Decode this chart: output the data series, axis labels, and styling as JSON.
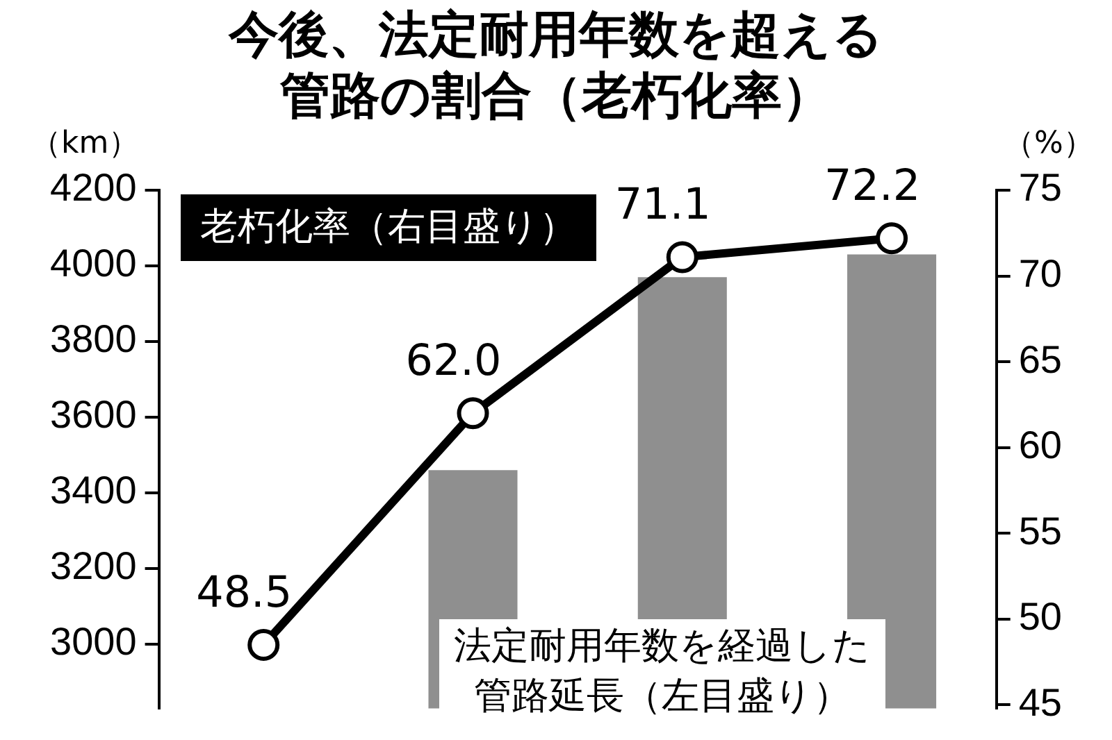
{
  "chart_data": {
    "type": "bar",
    "title": "今後、法定耐用年数を超える管路の割合（老朽化率）",
    "ylabel": "（km）",
    "y2label": "（%）",
    "categories": [
      null,
      null,
      null,
      null
    ],
    "series": [
      {
        "name": "法定耐用年数を経過した管路延長（左目盛り）",
        "color": "#8f8f8f",
        "values": [
          null,
          3460,
          3970,
          4030
        ]
      },
      {
        "type": "line",
        "axis": "y2",
        "name": "老朽化率（右目盛り）",
        "color": "#000000",
        "values": [
          48.5,
          62.0,
          71.1,
          72.2
        ],
        "value_labels": [
          "48.5",
          "62.0",
          "71.1",
          "72.2"
        ]
      }
    ],
    "ylim": [
      2830,
      4200
    ],
    "yticks": [
      3000,
      3200,
      3400,
      3600,
      3800,
      4000,
      4200
    ],
    "y2lim": [
      44.8,
      75
    ],
    "y2ticks": [
      45,
      50,
      55,
      60,
      65,
      70,
      75
    ],
    "grid": false,
    "legend": false,
    "marker": "circle",
    "line_style": "solid"
  }
}
